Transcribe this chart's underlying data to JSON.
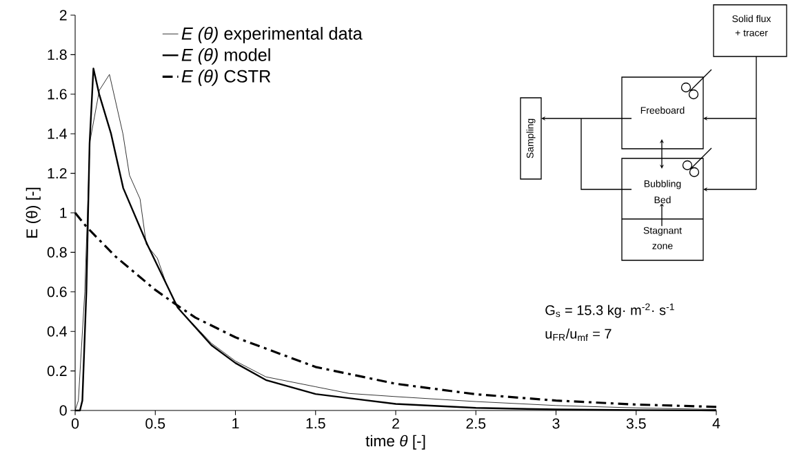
{
  "chart_data": {
    "type": "line",
    "xlabel": "time *θ* [-]",
    "ylabel": "E (θ) [-]",
    "xlim": [
      0,
      4
    ],
    "ylim": [
      0,
      2
    ],
    "xticks": [
      0,
      0.5,
      1,
      1.5,
      2,
      2.5,
      3,
      3.5,
      4
    ],
    "yticks": [
      0,
      0.2,
      0.4,
      0.6,
      0.8,
      1,
      1.2,
      1.4,
      1.6,
      1.8,
      2
    ],
    "grid": false,
    "legend": "top left",
    "marker": "none",
    "series": [
      {
        "name": "*E (θ)* experimental data",
        "color": "#000000",
        "line_style": "solid",
        "x": [
          0,
          0.02,
          0.06,
          0.092,
          0.151,
          0.214,
          0.298,
          0.339,
          0.405,
          0.444,
          0.513,
          0.569,
          0.64,
          0.85,
          1.0,
          1.19,
          1.5,
          1.71,
          2.0,
          2.5,
          3.0,
          3.5,
          4.0
        ],
        "values": [
          0,
          0.05,
          0.6,
          1.36,
          1.62,
          1.7,
          1.4,
          1.19,
          1.07,
          0.84,
          0.77,
          0.64,
          0.52,
          0.34,
          0.25,
          0.17,
          0.12,
          0.086,
          0.07,
          0.045,
          0.025,
          0.013,
          0.005
        ]
      },
      {
        "name": "*E (θ)* model",
        "color": "#000000",
        "line_style": "solid",
        "x": [
          0,
          0.03,
          0.045,
          0.07,
          0.09,
          0.114,
          0.15,
          0.224,
          0.3,
          0.45,
          0.64,
          0.85,
          1.0,
          1.19,
          1.5,
          2.0,
          2.5,
          3.0,
          3.5,
          4.0
        ],
        "values": [
          0,
          0,
          0.05,
          0.6,
          1.35,
          1.73,
          1.6,
          1.4,
          1.125,
          0.84,
          0.52,
          0.33,
          0.24,
          0.154,
          0.083,
          0.033,
          0.013,
          0.005,
          0.002,
          0
        ]
      },
      {
        "name": "*E (θ)* CSTR",
        "color": "#000000",
        "line_style": "dashed",
        "x": [
          0,
          0.07,
          0.25,
          0.5,
          0.64,
          0.75,
          1.0,
          1.5,
          2.0,
          2.5,
          3.0,
          3.5,
          4.0
        ],
        "values": [
          1,
          0.93,
          0.78,
          0.61,
          0.53,
          0.47,
          0.37,
          0.22,
          0.135,
          0.082,
          0.05,
          0.03,
          0.018
        ]
      }
    ],
    "annotations": [
      "G$_{s}$ = 15.3 kg· m$^{-2}$· s$^{-1}$",
      "u$_{FR}$/u$_{mf}$ = 7",
      "Solid flux",
      "+ tracer",
      "Freeboard",
      "Bubbling",
      "Bed",
      "Stagnant",
      "zone",
      "Sampling"
    ]
  }
}
